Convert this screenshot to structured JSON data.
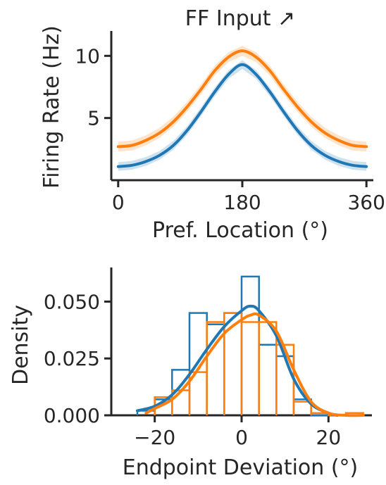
{
  "chart_data": [
    {
      "type": "line",
      "title": "FF Input ↗",
      "xlabel": "Pref. Location (°)",
      "ylabel": "Firing Rate (Hz)",
      "xlim": [
        -10,
        370
      ],
      "ylim": [
        0.0,
        12.0
      ],
      "xticks": [
        0,
        180,
        360
      ],
      "xtick_labels": [
        "0",
        "180",
        "360"
      ],
      "yticks": [
        5,
        10
      ],
      "ytick_labels": [
        "5",
        "10"
      ],
      "grid": false,
      "legend": "none",
      "x": [
        0,
        20,
        40,
        60,
        80,
        100,
        120,
        140,
        160,
        180,
        200,
        220,
        240,
        260,
        280,
        300,
        320,
        340,
        360
      ],
      "series": [
        {
          "color": "#1f77b4",
          "values": [
            1.1,
            1.2,
            1.5,
            2.0,
            2.8,
            4.0,
            5.5,
            7.1,
            8.5,
            9.3,
            8.5,
            7.1,
            5.5,
            4.0,
            2.8,
            2.0,
            1.5,
            1.2,
            1.1
          ],
          "band": 0.35
        },
        {
          "color": "#ff7f0e",
          "values": [
            2.7,
            2.8,
            3.2,
            3.8,
            4.7,
            5.9,
            7.3,
            8.8,
            9.9,
            10.4,
            9.9,
            8.8,
            7.3,
            5.9,
            4.7,
            3.8,
            3.2,
            2.8,
            2.7
          ],
          "band": 0.4
        }
      ]
    },
    {
      "type": "histogram",
      "xlabel": "Endpoint Deviation (°)",
      "ylabel": "Density",
      "xlim": [
        -30,
        30
      ],
      "ylim": [
        0.0,
        0.065
      ],
      "xticks": [
        -20,
        0,
        20
      ],
      "xtick_labels": [
        "−20",
        "0",
        "20"
      ],
      "yticks": [
        0.0,
        0.025,
        0.05
      ],
      "ytick_labels": [
        "0.000",
        "0.025",
        "0.050"
      ],
      "grid": false,
      "legend": "none",
      "series": [
        {
          "color": "#1f77b4",
          "bin_edges": [
            -24,
            -20,
            -16,
            -12,
            -8,
            -4,
            0,
            4,
            8,
            12,
            16,
            20
          ],
          "densities": [
            0.002,
            0.007,
            0.02,
            0.045,
            0.04,
            0.045,
            0.061,
            0.031,
            0.026,
            0.007,
            0.0
          ],
          "kde_x": [
            -24,
            -20,
            -16,
            -12,
            -8,
            -4,
            0,
            2,
            4,
            8,
            12,
            16,
            20,
            22
          ],
          "kde_y": [
            0.002,
            0.004,
            0.009,
            0.018,
            0.029,
            0.039,
            0.046,
            0.048,
            0.046,
            0.035,
            0.016,
            0.005,
            0.001,
            0.0
          ]
        },
        {
          "color": "#ff7f0e",
          "bin_edges": [
            -20,
            -16,
            -12,
            -8,
            -4,
            0,
            4,
            8,
            12,
            16,
            20,
            24,
            28
          ],
          "densities": [
            0.008,
            0.011,
            0.019,
            0.041,
            0.045,
            0.041,
            0.041,
            0.031,
            0.006,
            0.001,
            0.0,
            0.001
          ],
          "kde_x": [
            -22,
            -20,
            -16,
            -12,
            -8,
            -4,
            0,
            2,
            4,
            8,
            12,
            16,
            20,
            24,
            28
          ],
          "kde_y": [
            0.001,
            0.003,
            0.007,
            0.015,
            0.026,
            0.036,
            0.042,
            0.044,
            0.044,
            0.037,
            0.02,
            0.006,
            0.001,
            0.0,
            0.0
          ]
        }
      ]
    }
  ]
}
